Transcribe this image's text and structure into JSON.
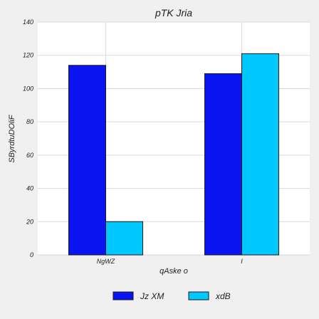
{
  "chart_data": {
    "type": "bar",
    "title": "pTK Jria",
    "xlabel": "qAske o",
    "ylabel": "SByrdtuDOliF",
    "categories": [
      "NgWZ",
      "I"
    ],
    "series": [
      {
        "name": "Jz XM",
        "values": [
          114,
          109
        ],
        "color": "#0a14f0"
      },
      {
        "name": "xdB",
        "values": [
          20,
          121
        ],
        "color": "#00c8ff"
      }
    ],
    "ylim": [
      0,
      140
    ],
    "yticks": [
      0,
      20,
      40,
      60,
      80,
      100,
      120,
      140
    ],
    "grid": true,
    "legend_position": "bottom-center"
  }
}
